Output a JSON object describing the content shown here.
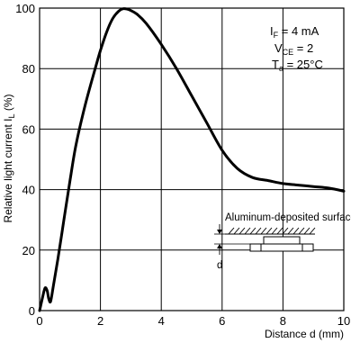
{
  "chart_data": {
    "type": "line",
    "title": "",
    "xlabel": "Distance d (mm)",
    "ylabel": "Relative light current Iₗ (%)",
    "ylabel_parts": {
      "main": "Relative light current I",
      "sub": "L",
      "unit": " (%)"
    },
    "xlim": [
      0,
      10
    ],
    "ylim": [
      0,
      100
    ],
    "x_ticks": [
      0,
      2,
      4,
      6,
      8,
      10
    ],
    "y_ticks": [
      0,
      20,
      40,
      60,
      80,
      100
    ],
    "grid": true,
    "conditions": [
      {
        "main": "I",
        "sub": "F",
        "rest": " = 4 mA"
      },
      {
        "main": "V",
        "sub": "CE",
        "rest": " = 2"
      },
      {
        "main": "T",
        "sub": "a",
        "rest": " = 25°C"
      }
    ],
    "inset": {
      "label": "Aluminum-deposited surface",
      "dimension_label": "d"
    },
    "series": [
      {
        "x": [
          0,
          0.1,
          0.18,
          0.25,
          0.3,
          0.36,
          0.45,
          0.6,
          0.8,
          1.0,
          1.2,
          1.5,
          1.8,
          2.0,
          2.2,
          2.4,
          2.6,
          2.75,
          2.9,
          3.0,
          3.2,
          3.5,
          4.0,
          4.5,
          5.0,
          5.5,
          6.0,
          6.5,
          7.0,
          7.5,
          8.0,
          8.5,
          9.0,
          9.5,
          10.0
        ],
        "y": [
          0,
          4.5,
          7.5,
          6.5,
          4,
          3,
          8,
          17,
          30,
          43,
          55,
          68,
          79,
          86,
          92,
          96.5,
          99,
          99.8,
          99.6,
          99.2,
          98,
          95,
          88,
          80,
          71,
          62,
          53,
          47,
          44,
          43,
          42,
          41.5,
          41,
          40.5,
          39.5
        ]
      }
    ]
  }
}
